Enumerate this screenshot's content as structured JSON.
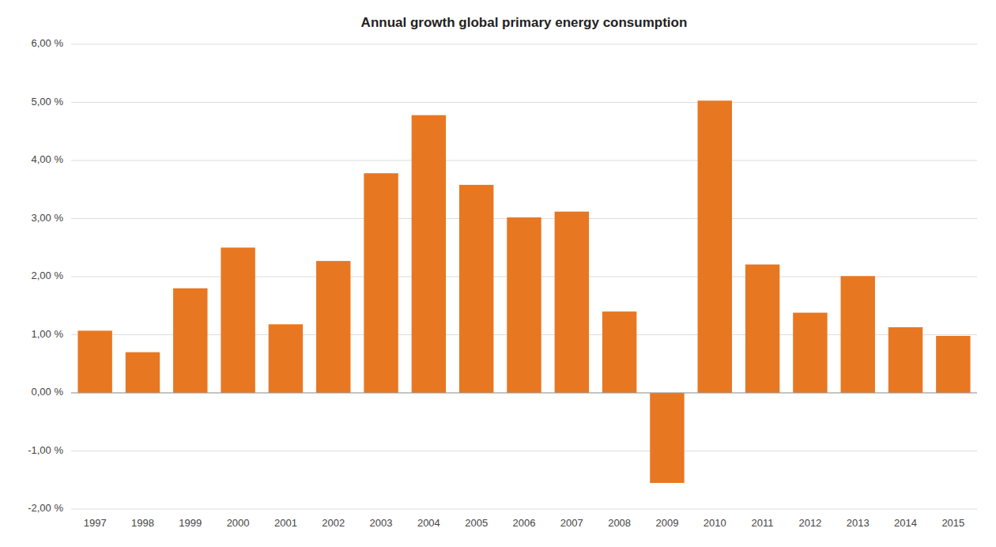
{
  "chart_data": {
    "type": "bar",
    "title": "Annual growth global primary energy consumption",
    "categories": [
      "1997",
      "1998",
      "1999",
      "2000",
      "2001",
      "2002",
      "2003",
      "2004",
      "2005",
      "2006",
      "2007",
      "2008",
      "2009",
      "2010",
      "2011",
      "2012",
      "2013",
      "2014",
      "2015"
    ],
    "values": [
      0.0107,
      0.007,
      0.018,
      0.025,
      0.0118,
      0.0227,
      0.0378,
      0.0478,
      0.0358,
      0.0302,
      0.0312,
      0.014,
      -0.0155,
      0.0503,
      0.0221,
      0.0138,
      0.0201,
      0.0113,
      0.0098
    ],
    "color": "#E87722",
    "ylim": [
      -0.02,
      0.06
    ],
    "yticks": [
      {
        "value": -0.02,
        "label": "-2,00 %"
      },
      {
        "value": -0.01,
        "label": "-1,00 %"
      },
      {
        "value": 0.0,
        "label": "0,00 %"
      },
      {
        "value": 0.01,
        "label": "1,00 %"
      },
      {
        "value": 0.02,
        "label": "2,00 %"
      },
      {
        "value": 0.03,
        "label": "3,00 %"
      },
      {
        "value": 0.04,
        "label": "4,00 %"
      },
      {
        "value": 0.05,
        "label": "5,00 %"
      },
      {
        "value": 0.06,
        "label": "6,00 %"
      }
    ],
    "grid": true
  }
}
